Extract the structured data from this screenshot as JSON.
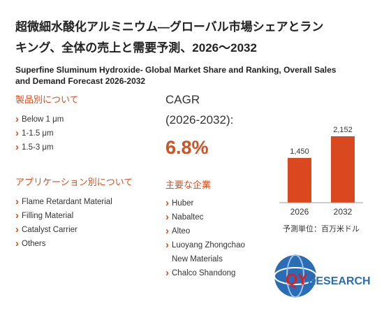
{
  "header": {
    "title": [
      "超微細水酸化アルミニウム—グローバル市場シェアとラン",
      "キング、全体の売上と需要予測、2026～2032"
    ],
    "subtitle": [
      "Superfine Sluminum Hydroxide- Global Market Share and Ranking, Overall Sales",
      "and Demand Forecast 2026-2032"
    ]
  },
  "products": {
    "heading": "製品別について",
    "items": [
      "Below 1 μm",
      "1-1.5 μm",
      "1.5-3 μm"
    ]
  },
  "applications": {
    "heading": "アプリケーション別について",
    "items": [
      "Flame Retardant Material",
      "Filling Material",
      "Catalyst Carrier",
      "Others"
    ]
  },
  "cagr": {
    "label": "CAGR",
    "period": "(2026-2032):",
    "value": "6.8%"
  },
  "companies": {
    "heading": "主要な企業",
    "items": [
      "Huber",
      "Nabaltec",
      "Alteo",
      "Luoyang Zhongchao",
      "New Materials",
      "Chalco Shandong"
    ]
  },
  "chart": {
    "categories": [
      "2026",
      "2032"
    ],
    "values": [
      1450,
      2152
    ],
    "value_labels": [
      "1,450",
      "2,152"
    ],
    "color": "#d9481f",
    "unit": "予測単位：百万米ドル"
  },
  "logo": {
    "prefix": "QY",
    "suffix": "RESEARCH"
  }
}
